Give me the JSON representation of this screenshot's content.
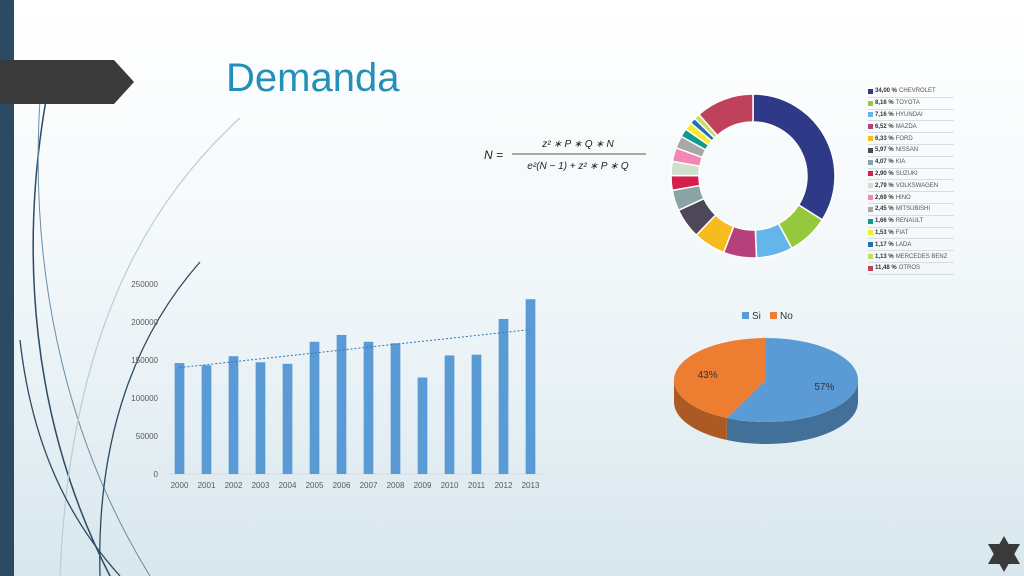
{
  "slide": {
    "title": "Demanda"
  },
  "formula": {
    "lhs": "N =",
    "numerator": "z² ∗ P ∗ Q ∗ N",
    "denominator": "e²(N − 1) + z² ∗ P ∗ Q"
  },
  "colors": {
    "accent": "#2290b8",
    "left_band": "#2b4a63",
    "bar": "#5b9bd5",
    "trendline": "#2e75b6"
  },
  "icons": [
    "arrow-banner-icon",
    "star-of-david-icon"
  ],
  "chart_data": [
    {
      "type": "bar",
      "title": "",
      "xlabel": "",
      "ylabel": "",
      "categories": [
        "2000",
        "2001",
        "2002",
        "2003",
        "2004",
        "2005",
        "2006",
        "2007",
        "2008",
        "2009",
        "2010",
        "2011",
        "2012",
        "2013"
      ],
      "values": [
        146000,
        143000,
        155000,
        147000,
        145000,
        174000,
        183000,
        174000,
        172000,
        127000,
        156000,
        157000,
        204000,
        230000
      ],
      "ylim": [
        0,
        250000
      ],
      "yticks": [
        "0",
        "50000",
        "100000",
        "150000",
        "200000",
        "250000"
      ],
      "trendline": {
        "type": "linear",
        "style": "dotted",
        "start": 140000,
        "end": 190000
      },
      "grid": false
    },
    {
      "type": "pie",
      "variant": "donut",
      "legend_position": "right",
      "slices": [
        {
          "value": 34.0,
          "label": "34,00 %",
          "name": "CHEVROLET",
          "color": "#2e3a87"
        },
        {
          "value": 8.16,
          "label": "8,16 %",
          "name": "TOYOTA",
          "color": "#95c83d"
        },
        {
          "value": 7.16,
          "label": "7,16 %",
          "name": "HYUNDAI",
          "color": "#63b5ea"
        },
        {
          "value": 6.52,
          "label": "6,52 %",
          "name": "MAZDA",
          "color": "#b5417a"
        },
        {
          "value": 6.33,
          "label": "6,33 %",
          "name": "FORD",
          "color": "#f7bb1d"
        },
        {
          "value": 5.97,
          "label": "5,97 %",
          "name": "NISSAN",
          "color": "#4d4757"
        },
        {
          "value": 4.07,
          "label": "4,07 %",
          "name": "KIA",
          "color": "#8aa4a6"
        },
        {
          "value": 2.9,
          "label": "2,90 %",
          "name": "SUZUKI",
          "color": "#d6204b"
        },
        {
          "value": 2.79,
          "label": "2,79 %",
          "name": "VOLKSWAGEN",
          "color": "#cfe0cd"
        },
        {
          "value": 2.69,
          "label": "2,69 %",
          "name": "HINO",
          "color": "#f386b2"
        },
        {
          "value": 2.45,
          "label": "2,45 %",
          "name": "MITSUBISHI",
          "color": "#a8a8a8"
        },
        {
          "value": 1.66,
          "label": "1,66 %",
          "name": "RENAULT",
          "color": "#11998c"
        },
        {
          "value": 1.53,
          "label": "1,53 %",
          "name": "FIAT",
          "color": "#f8ea2a"
        },
        {
          "value": 1.17,
          "label": "1,17 %",
          "name": "LADA",
          "color": "#1f6fb7"
        },
        {
          "value": 1.13,
          "label": "1,13 %",
          "name": "MERCEDES BENZ",
          "color": "#c9dc66"
        },
        {
          "value": 11.48,
          "label": "11,48 %",
          "name": "OTROS",
          "color": "#c0425a"
        }
      ]
    },
    {
      "type": "pie",
      "variant": "3d",
      "legend_position": "top",
      "series": [
        {
          "name": "Si",
          "value": 57,
          "label": "57%",
          "color": "#5b9bd5"
        },
        {
          "name": "No",
          "value": 43,
          "label": "43%",
          "color": "#ed7d31"
        }
      ]
    }
  ]
}
